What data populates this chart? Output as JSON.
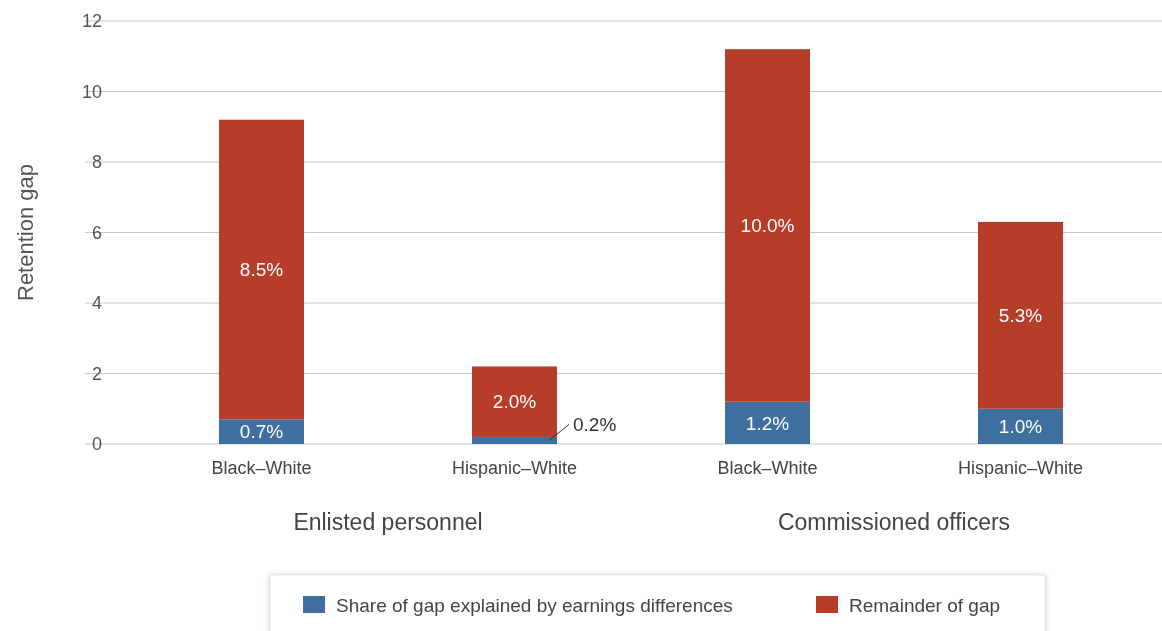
{
  "chart_data": {
    "type": "bar",
    "stacked": true,
    "ylabel": "Retention gap",
    "categories": [
      "Black–White",
      "Hispanic–White",
      "Black–White",
      "Hispanic–White"
    ],
    "series": [
      {
        "name": "Share of gap explained by earnings differences",
        "color": "#3f6f9f",
        "values": [
          0.7,
          0.2,
          1.2,
          1.0
        ],
        "value_labels": [
          "0.7%",
          "0.2%",
          "1.2%",
          "1.0%"
        ]
      },
      {
        "name": "Remainder of gap",
        "color": "#b53d29",
        "values": [
          8.5,
          2.0,
          10.0,
          5.3
        ],
        "value_labels": [
          "8.5%",
          "2.0%",
          "10.0%",
          "5.3%"
        ]
      }
    ],
    "annotations": [
      "Enlisted personnel",
      "Commissioned officers"
    ],
    "ylim": [
      0,
      12
    ],
    "yticks": [
      0,
      2,
      4,
      6,
      8,
      10,
      12
    ],
    "grid": "y",
    "legend": "bottom"
  }
}
